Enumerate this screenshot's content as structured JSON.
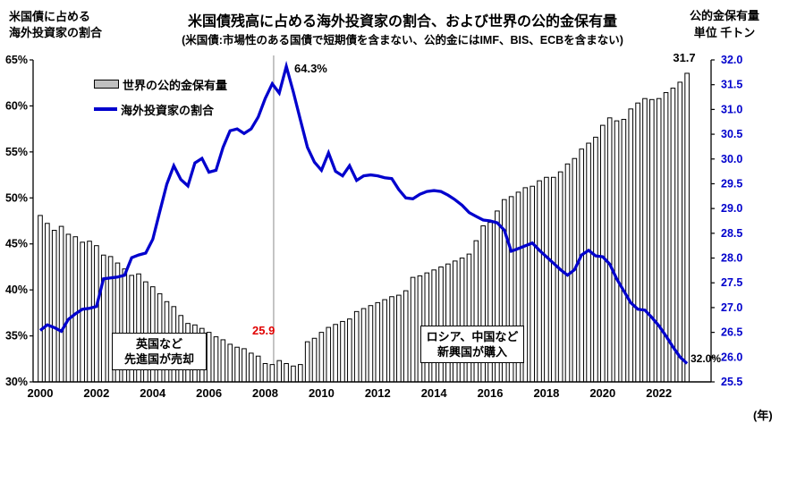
{
  "title": "米国債残高に占める海外投資家の割合、および世界の公的金保有量",
  "subtitle": "(米国債:市場性のある国債で短期債を含まない、公的金にはIMF、BIS、ECBを含まない)",
  "left_axis_title": {
    "line1": "米国債に占める",
    "line2": "海外投資家の割合"
  },
  "right_axis_title": {
    "line1": "公的金保有量",
    "line2": "単位 千トン"
  },
  "legend": {
    "gold_label": "世界の公的金保有量",
    "line_label": "海外投資家の割合"
  },
  "annotations": {
    "peak_label": "64.3%",
    "gold_min_label": "25.9",
    "gold_last_label": "31.7",
    "line_last_label": "32.0%",
    "x_unit_label": "(年)",
    "box_developed": {
      "line1": "英国など",
      "line2": "先進国が売却"
    },
    "box_emerging": {
      "line1": "ロシア、中国など",
      "line2": "新興国が購入"
    }
  },
  "colors": {
    "line": "#0000cd",
    "right_axis_text": "#0000cc",
    "left_axis_text": "#000000",
    "red_label": "#e00000",
    "bar_fill": "#ffffff",
    "bar_border": "#000000",
    "legend_bar_fill": "#c0c0c0",
    "reference_line": "#8c8c8c",
    "spine": "#000000"
  },
  "chart_data": {
    "type": "combo",
    "x_frequency": "quarterly",
    "x_start": "2000Q1",
    "x_end": "2023Q1",
    "x_tick_labels": [
      "2000",
      "2002",
      "2004",
      "2006",
      "2008",
      "2010",
      "2012",
      "2014",
      "2016",
      "2018",
      "2020",
      "2022"
    ],
    "left_axis": {
      "applies_to": "海外投資家の割合 (%)",
      "min": 30,
      "max": 65,
      "tick_step": 5,
      "tick_labels": [
        "65%",
        "60%",
        "55%",
        "50%",
        "45%",
        "40%",
        "35%",
        "30%"
      ]
    },
    "right_axis": {
      "applies_to": "世界の公的金保有量 (千トン)",
      "min": 25.5,
      "max": 32.0,
      "tick_step": 0.5,
      "tick_labels": [
        "32.0",
        "31.5",
        "31.0",
        "30.5",
        "30.0",
        "29.5",
        "29.0",
        "28.5",
        "28.0",
        "27.5",
        "27.0",
        "26.5",
        "26.0",
        "25.5"
      ]
    },
    "reference_line": {
      "x_index": 33.2,
      "note": "2008"
    },
    "series": [
      {
        "name": "世界の公的金保有量",
        "type": "bar",
        "axis": "right",
        "values": [
          28.86,
          28.7,
          28.56,
          28.64,
          28.48,
          28.43,
          28.32,
          28.34,
          28.25,
          28.06,
          28.03,
          27.9,
          27.78,
          27.65,
          27.68,
          27.52,
          27.42,
          27.28,
          27.12,
          27.02,
          26.84,
          26.68,
          26.65,
          26.58,
          26.5,
          26.41,
          26.35,
          26.26,
          26.2,
          26.17,
          26.08,
          26.02,
          25.87,
          25.85,
          25.93,
          25.87,
          25.82,
          25.85,
          26.31,
          26.38,
          26.5,
          26.6,
          26.66,
          26.72,
          26.77,
          26.92,
          26.98,
          27.04,
          27.1,
          27.16,
          27.22,
          27.25,
          27.34,
          27.61,
          27.64,
          27.7,
          27.76,
          27.82,
          27.88,
          27.94,
          28.0,
          28.08,
          28.35,
          28.65,
          28.72,
          28.95,
          29.18,
          29.24,
          29.33,
          29.42,
          29.45,
          29.56,
          29.63,
          29.63,
          29.74,
          29.9,
          30.01,
          30.2,
          30.32,
          30.44,
          30.68,
          30.83,
          30.77,
          30.8,
          31.01,
          31.13,
          31.22,
          31.2,
          31.22,
          31.34,
          31.43,
          31.55,
          31.73
        ]
      },
      {
        "name": "海外投資家の割合",
        "type": "line",
        "axis": "left",
        "values": [
          35.6,
          36.2,
          35.9,
          35.5,
          36.8,
          37.4,
          37.9,
          38.0,
          38.2,
          41.2,
          41.3,
          41.4,
          41.6,
          43.5,
          43.8,
          44.0,
          45.5,
          48.5,
          51.5,
          53.5,
          52.0,
          51.3,
          53.8,
          54.3,
          52.8,
          53.0,
          55.5,
          57.3,
          57.5,
          57.0,
          57.5,
          58.8,
          60.8,
          62.4,
          61.4,
          64.3,
          61.5,
          58.5,
          55.5,
          53.9,
          53.0,
          54.9,
          52.9,
          52.4,
          53.5,
          51.9,
          52.4,
          52.5,
          52.4,
          52.2,
          52.1,
          50.9,
          50.0,
          49.9,
          50.4,
          50.7,
          50.8,
          50.7,
          50.3,
          49.8,
          49.2,
          48.4,
          48.0,
          47.6,
          47.5,
          47.3,
          46.5,
          44.2,
          44.5,
          44.8,
          45.1,
          44.3,
          43.6,
          42.9,
          42.2,
          41.6,
          42.2,
          43.8,
          44.3,
          43.7,
          43.6,
          42.8,
          41.2,
          39.9,
          38.6,
          37.9,
          37.8,
          37.0,
          36.1,
          35.0,
          33.8,
          32.7,
          32.0
        ]
      }
    ]
  }
}
